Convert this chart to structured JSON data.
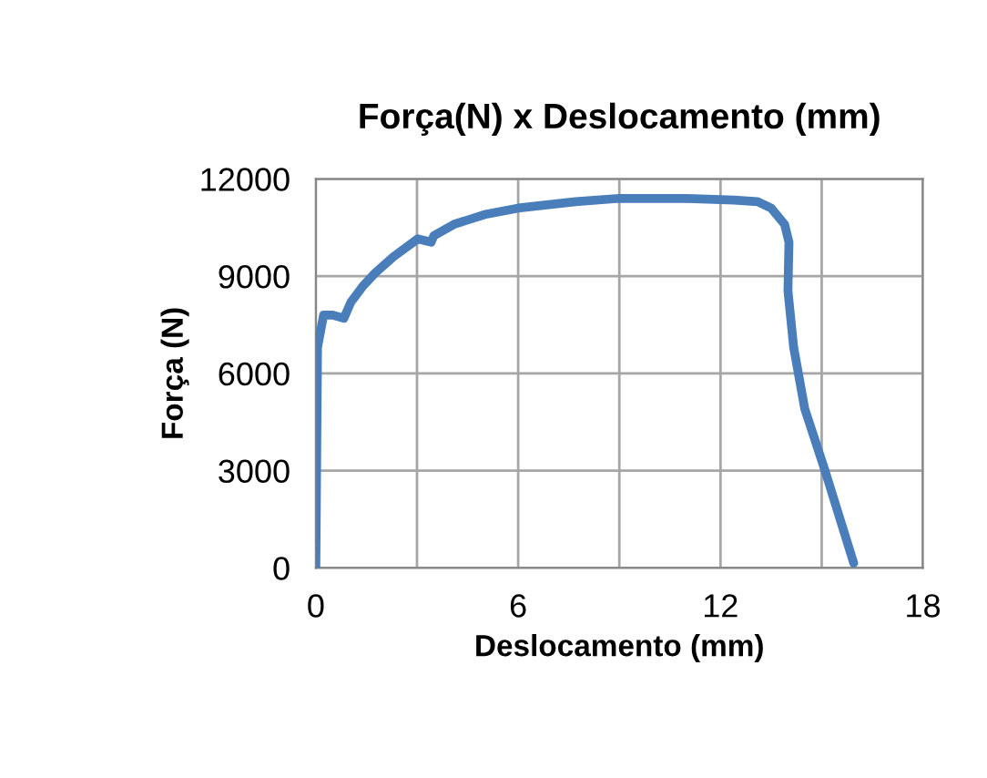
{
  "chart_data": {
    "type": "line",
    "title": "Força(N) x Deslocamento (mm)",
    "xlabel": "Deslocamento (mm)",
    "ylabel": "Força (N)",
    "series": [
      {
        "color": "#4a7ebb",
        "x": [
          0,
          0.05,
          0.23,
          0.5,
          0.83,
          1.04,
          1.4,
          1.76,
          2.3,
          3.02,
          3.42,
          3.5,
          4.1,
          5.0,
          6.0,
          7.7,
          9.0,
          10.9,
          12.4,
          13.1,
          13.5,
          13.9,
          14.03,
          14.0,
          14.17,
          14.5,
          15.1,
          15.95
        ],
        "values": [
          0,
          6800,
          7800,
          7800,
          7700,
          8200,
          8700,
          9100,
          9600,
          10150,
          10050,
          10250,
          10600,
          10900,
          11100,
          11300,
          11400,
          11400,
          11350,
          11300,
          11100,
          10600,
          10050,
          8550,
          6800,
          4900,
          3000,
          150
        ]
      }
    ],
    "xlim": [
      0,
      18
    ],
    "xticks": [
      0,
      {
        "value": 3,
        "label": null
      },
      6,
      {
        "value": 9,
        "label": null
      },
      12,
      {
        "value": 15,
        "label": null
      },
      18
    ],
    "ylim": [
      0,
      12000
    ],
    "yticks": [
      0,
      3000,
      6000,
      9000,
      12000
    ],
    "grid": true,
    "legend": false,
    "marker": "none",
    "line_style": "solid"
  }
}
